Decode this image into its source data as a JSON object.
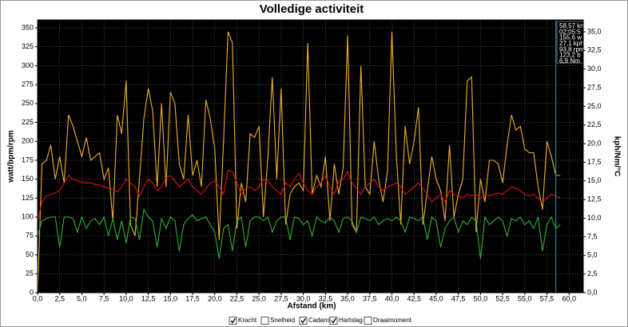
{
  "chart_data": {
    "type": "line",
    "title": "Volledige activiteit",
    "x_label": "Afstand (km)",
    "y_label": "watt/bpm/rpm",
    "y2_label": "kph/Nm/°C",
    "xlim": [
      0,
      61.6
    ],
    "ylim": [
      0,
      360.5
    ],
    "y2lim": [
      0,
      36.6
    ],
    "xticks": [
      {
        "value": 0,
        "label": "0,0"
      },
      {
        "value": 2.5,
        "label": "2,5"
      },
      {
        "value": 5,
        "label": "5,0"
      },
      {
        "value": 7.5,
        "label": "7,5"
      },
      {
        "value": 10,
        "label": "10,0"
      },
      {
        "value": 12.5,
        "label": "12,5"
      },
      {
        "value": 15,
        "label": "15,0"
      },
      {
        "value": 17.5,
        "label": "17,5"
      },
      {
        "value": 20,
        "label": "20,0"
      },
      {
        "value": 22.5,
        "label": "22,5"
      },
      {
        "value": 25,
        "label": "25,0"
      },
      {
        "value": 27.5,
        "label": "27,5"
      },
      {
        "value": 30,
        "label": "30,0"
      },
      {
        "value": 32.5,
        "label": "32,5"
      },
      {
        "value": 35,
        "label": "35,0"
      },
      {
        "value": 37.5,
        "label": "37,5"
      },
      {
        "value": 40,
        "label": "40,0"
      },
      {
        "value": 42.5,
        "label": "42,5"
      },
      {
        "value": 45,
        "label": "45,0"
      },
      {
        "value": 47.5,
        "label": "47,5"
      },
      {
        "value": 50,
        "label": "50,0"
      },
      {
        "value": 52.5,
        "label": "52,5"
      },
      {
        "value": 55,
        "label": "55,0"
      },
      {
        "value": 57.5,
        "label": "57,5"
      },
      {
        "value": 60,
        "label": "60,0"
      }
    ],
    "yticks": [
      0,
      25,
      50,
      75,
      100,
      125,
      150,
      175,
      200,
      225,
      250,
      275,
      300,
      325,
      350
    ],
    "y2ticks": [
      {
        "value": 0,
        "label": "0,0"
      },
      {
        "value": 2.5,
        "label": "2,5"
      },
      {
        "value": 5,
        "label": "5,0"
      },
      {
        "value": 7.5,
        "label": "7,5"
      },
      {
        "value": 10,
        "label": "10,0"
      },
      {
        "value": 12.5,
        "label": "12,5"
      },
      {
        "value": 15,
        "label": "15,0"
      },
      {
        "value": 17.5,
        "label": "17,5"
      },
      {
        "value": 20,
        "label": "20,0"
      },
      {
        "value": 22.5,
        "label": "22,5"
      },
      {
        "value": 25,
        "label": "25,0"
      },
      {
        "value": 27.5,
        "label": "27,5"
      },
      {
        "value": 30,
        "label": "30,0"
      },
      {
        "value": 32.5,
        "label": "32,5"
      },
      {
        "value": 35,
        "label": "35,0"
      }
    ],
    "grid": true,
    "marker_x": 58.5,
    "readout": [
      "58,57 km",
      "02:05:5",
      "155,6 w",
      "27,1 kph",
      "93,8 rpm",
      "123,2 b",
      "6,9 Nm"
    ],
    "x": [
      0,
      0.5,
      1,
      1.5,
      2,
      2.5,
      3,
      3.5,
      4,
      4.5,
      5,
      5.5,
      6,
      6.5,
      7,
      7.5,
      8,
      8.5,
      9,
      9.5,
      10,
      10.5,
      11,
      11.5,
      12,
      12.5,
      13,
      13.5,
      14,
      14.5,
      15,
      15.5,
      16,
      16.5,
      17,
      17.5,
      18,
      18.5,
      19,
      19.5,
      20,
      20.5,
      21,
      21.5,
      22,
      22.5,
      23,
      23.5,
      24,
      24.5,
      25,
      25.5,
      26,
      26.5,
      27,
      27.5,
      28,
      28.5,
      29,
      29.5,
      30,
      30.5,
      31,
      31.5,
      32,
      32.5,
      33,
      33.5,
      34,
      34.5,
      35,
      35.5,
      36,
      36.5,
      37,
      37.5,
      38,
      38.5,
      39,
      39.5,
      40,
      40.5,
      41,
      41.5,
      42,
      42.5,
      43,
      43.5,
      44,
      44.5,
      45,
      45.5,
      46,
      46.5,
      47,
      47.5,
      48,
      48.5,
      49,
      49.5,
      50,
      50.5,
      51,
      51.5,
      52,
      52.5,
      53,
      53.5,
      54,
      54.5,
      55,
      55.5,
      56,
      56.5,
      57,
      57.5,
      58,
      58.5,
      59
    ],
    "series": [
      {
        "name": "Kracht",
        "color": "#f0b030",
        "checked": true,
        "values": [
          0,
          170,
          175,
          195,
          150,
          180,
          145,
          235,
          220,
          200,
          180,
          205,
          175,
          180,
          185,
          150,
          165,
          95,
          235,
          210,
          280,
          90,
          75,
          150,
          230,
          270,
          240,
          140,
          250,
          140,
          265,
          250,
          170,
          150,
          235,
          155,
          175,
          140,
          255,
          230,
          190,
          70,
          200,
          345,
          330,
          85,
          145,
          120,
          210,
          205,
          220,
          100,
          180,
          285,
          150,
          270,
          90,
          130,
          140,
          145,
          135,
          330,
          130,
          155,
          140,
          180,
          95,
          170,
          130,
          165,
          340,
          90,
          80,
          300,
          140,
          130,
          200,
          150,
          120,
          160,
          345,
          180,
          90,
          220,
          170,
          200,
          245,
          90,
          135,
          180,
          150,
          135,
          95,
          195,
          100,
          130,
          150,
          280,
          285,
          80,
          150,
          120,
          175,
          175,
          170,
          145,
          195,
          235,
          215,
          220,
          190,
          185,
          185,
          140,
          110,
          200,
          180,
          155,
          155
        ]
      },
      {
        "name": "Snelheid",
        "color": "#3060d0",
        "checked": false
      },
      {
        "name": "Cadans",
        "color": "#30b030",
        "checked": true,
        "values": [
          75,
          95,
          98,
          100,
          100,
          60,
          100,
          100,
          98,
          80,
          100,
          85,
          95,
          98,
          90,
          100,
          75,
          98,
          70,
          95,
          65,
          100,
          98,
          70,
          110,
          100,
          95,
          60,
          98,
          85,
          100,
          95,
          55,
          90,
          98,
          103,
          95,
          98,
          100,
          90,
          80,
          45,
          85,
          90,
          55,
          95,
          100,
          60,
          95,
          100,
          100,
          95,
          100,
          80,
          95,
          100,
          100,
          70,
          100,
          98,
          90,
          95,
          75,
          100,
          95,
          92,
          100,
          95,
          80,
          98,
          100,
          95,
          80,
          100,
          98,
          95,
          100,
          90,
          95,
          98,
          95,
          100,
          95,
          80,
          100,
          98,
          95,
          100,
          70,
          100,
          95,
          60,
          85,
          95,
          100,
          80,
          95,
          90,
          100,
          95,
          45,
          100,
          90,
          95,
          100,
          95,
          75,
          98,
          95,
          100,
          90,
          95,
          85,
          100,
          55,
          90,
          100,
          85,
          90
        ]
      },
      {
        "name": "Hartslag",
        "color": "#e01010",
        "checked": true,
        "values": [
          95,
          120,
          128,
          130,
          132,
          135,
          145,
          155,
          150,
          148,
          146,
          145,
          145,
          143,
          142,
          140,
          138,
          137,
          133,
          140,
          150,
          145,
          140,
          128,
          140,
          150,
          145,
          135,
          140,
          152,
          155,
          148,
          140,
          145,
          150,
          140,
          135,
          130,
          138,
          145,
          148,
          140,
          130,
          162,
          160,
          145,
          130,
          138,
          140,
          135,
          140,
          150,
          148,
          140,
          135,
          130,
          145,
          140,
          150,
          158,
          145,
          135,
          130,
          140,
          145,
          155,
          140,
          130,
          148,
          150,
          160,
          145,
          138,
          130,
          140,
          145,
          150,
          140,
          135,
          140,
          142,
          145,
          140,
          130,
          135,
          140,
          145,
          138,
          130,
          120,
          125,
          130,
          120,
          135,
          130,
          128,
          125,
          130,
          128,
          130,
          125,
          130,
          128,
          130,
          132,
          130,
          135,
          140,
          138,
          135,
          130,
          128,
          130,
          125,
          120,
          125,
          130,
          128,
          125
        ]
      },
      {
        "name": "Draaimoment",
        "color": "#c000c0",
        "checked": false
      }
    ]
  }
}
